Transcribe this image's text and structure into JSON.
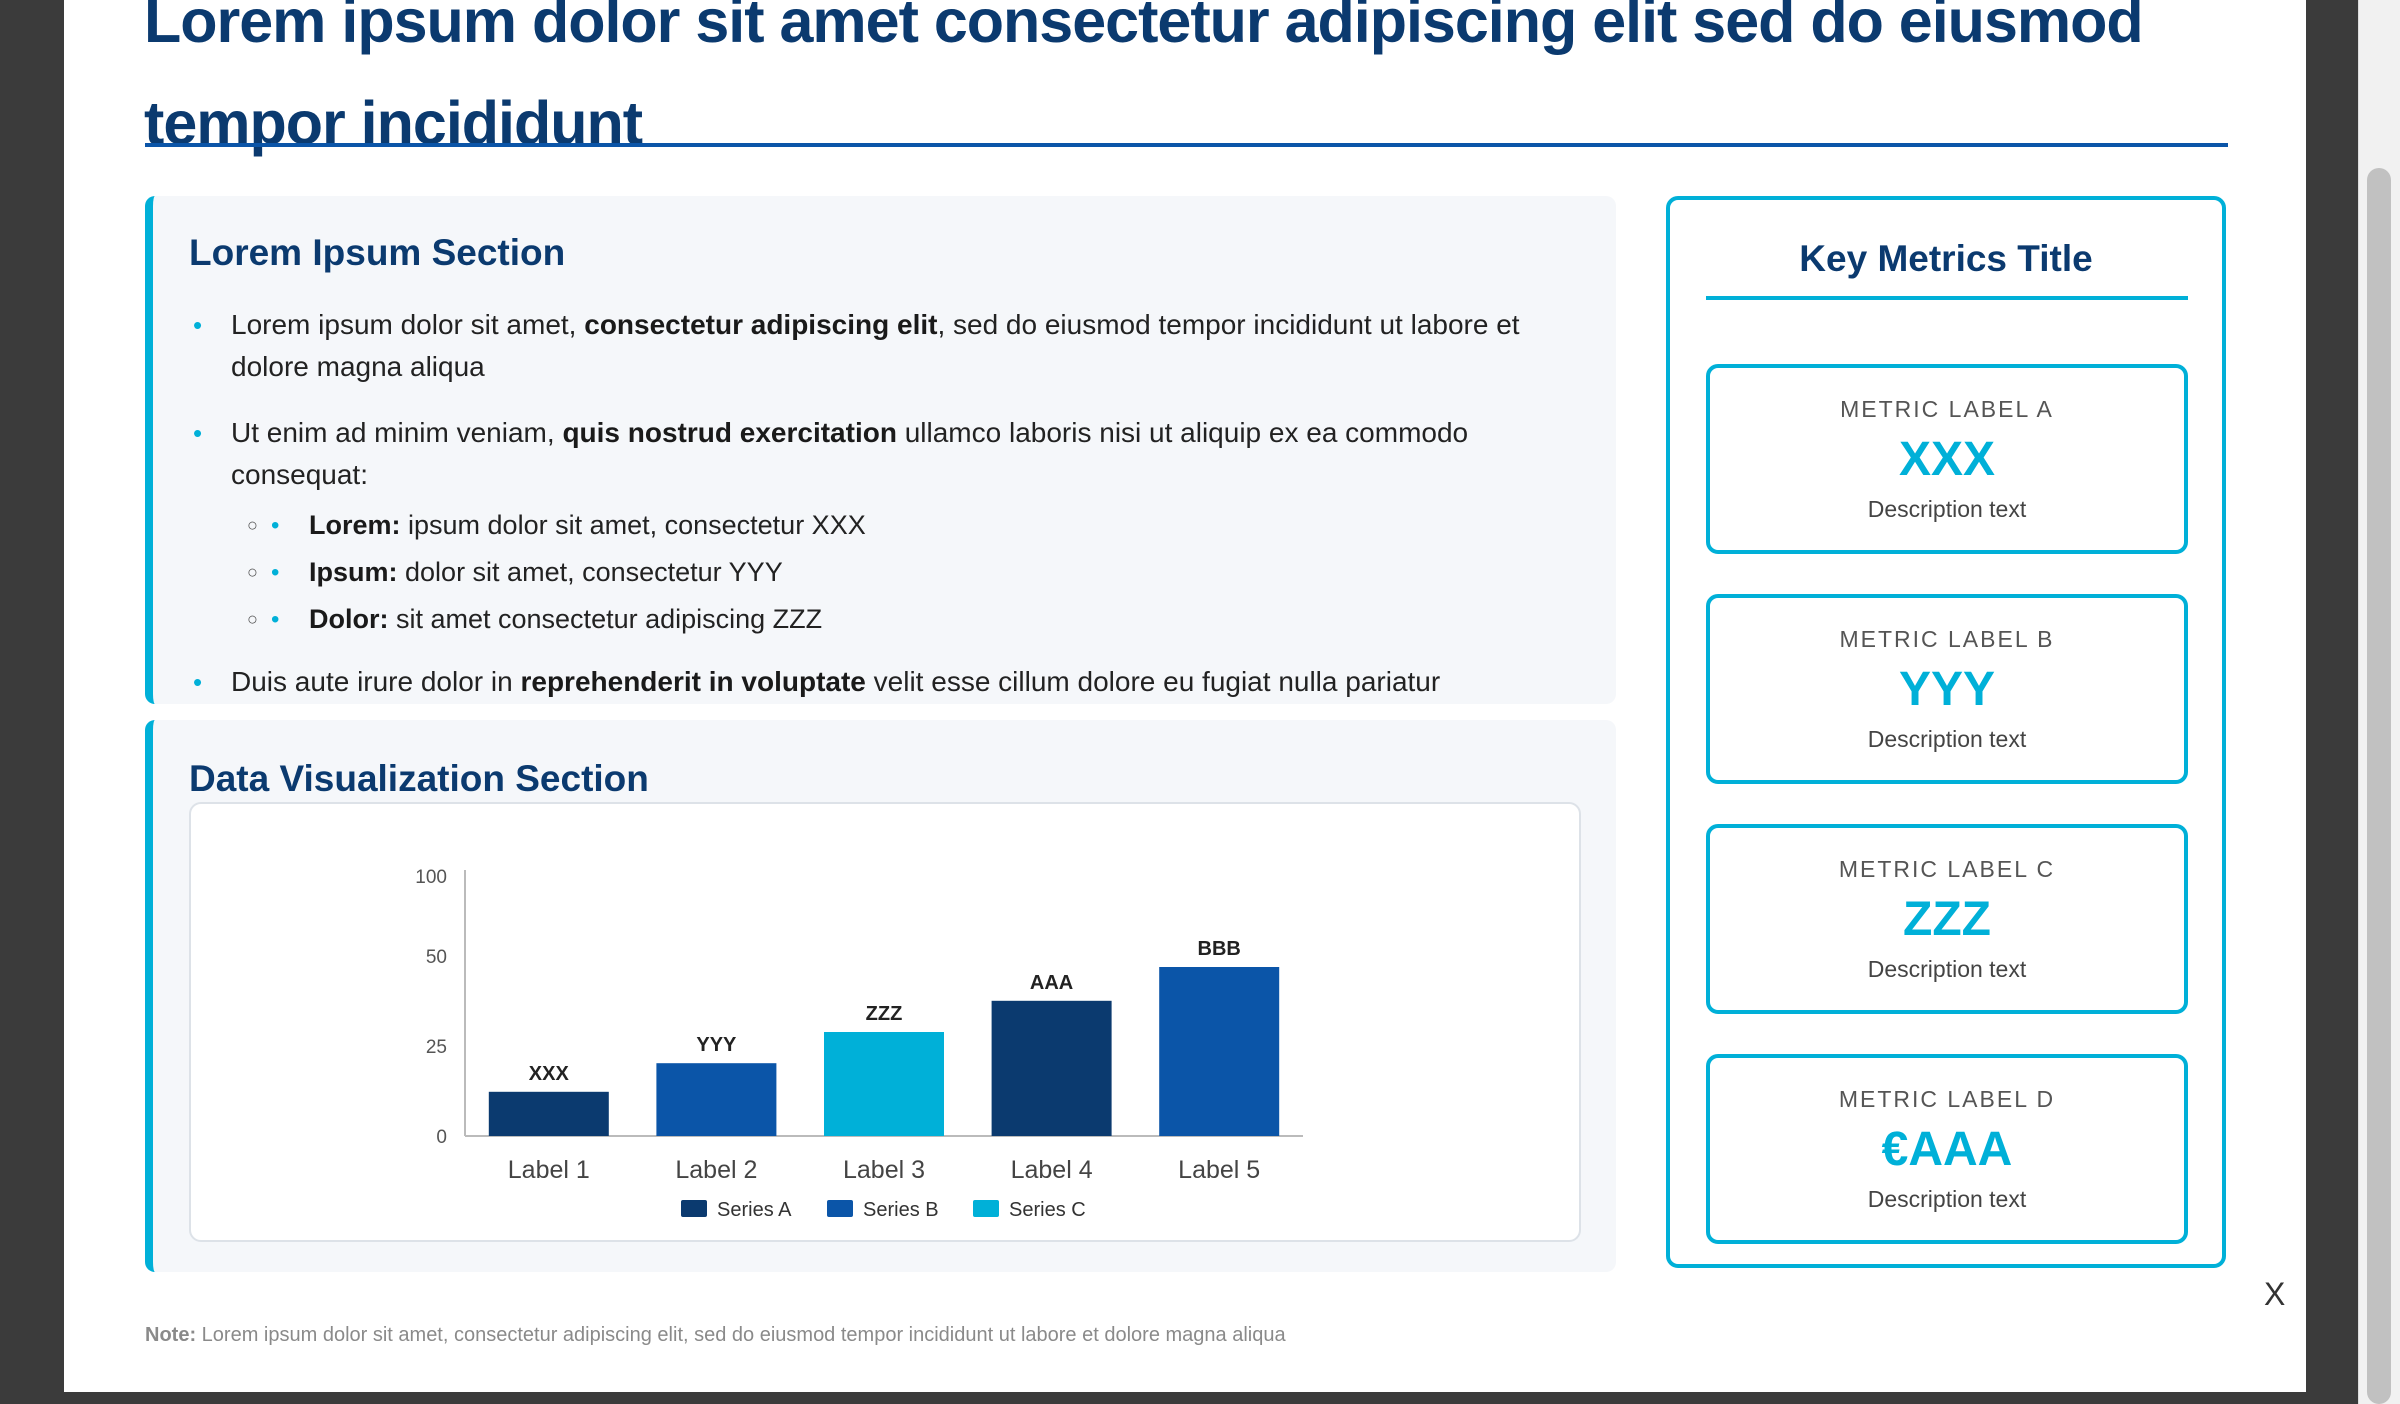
{
  "header": {
    "title": "Lorem ipsum dolor sit amet consectetur adipiscing elit sed do eiusmod tempor incididunt"
  },
  "section_text": {
    "title": "Lorem Ipsum Section",
    "bullets": [
      {
        "pre": "Lorem ipsum dolor sit amet, ",
        "bold": "consectetur adipiscing elit",
        "post": ", sed do eiusmod tempor incididunt ut labore et dolore magna aliqua"
      },
      {
        "pre": "Ut enim ad minim veniam, ",
        "bold": "quis nostrud exercitation",
        "post": " ullamco laboris nisi ut aliquip ex ea commodo consequat:"
      },
      {
        "pre": "Duis aute irure dolor in ",
        "bold": "reprehenderit in voluptate",
        "post": " velit esse cillum dolore eu fugiat nulla pariatur"
      }
    ],
    "subbullets": [
      {
        "bold": "Lorem:",
        "text": " ipsum dolor sit amet, consectetur XXX"
      },
      {
        "bold": "Ipsum:",
        "text": " dolor sit amet, consectetur YYY"
      },
      {
        "bold": "Dolor:",
        "text": " sit amet consectetur adipiscing ZZZ"
      }
    ]
  },
  "section_chart": {
    "title": "Data Visualization Section"
  },
  "chart_data": {
    "type": "bar",
    "categories": [
      "Label 1",
      "Label 2",
      "Label 3",
      "Label 4",
      "Label 5"
    ],
    "values": [
      17,
      28,
      40,
      52,
      65
    ],
    "data_labels": [
      "XXX",
      "YYY",
      "ZZZ",
      "AAA",
      "BBB"
    ],
    "bar_series": [
      "Series A",
      "Series B",
      "Series C",
      "Series A",
      "Series B"
    ],
    "y_ticks": [
      "100",
      "50",
      "25",
      "0"
    ],
    "ylim": [
      0,
      100
    ],
    "legend": [
      "Series A",
      "Series B",
      "Series C"
    ],
    "legend_position": "bottom",
    "grid": false,
    "colors": {
      "Series A": "#0b3a6f",
      "Series B": "#0b55a8",
      "Series C": "#00b0d8"
    }
  },
  "metrics": {
    "title": "Key Metrics Title",
    "cards": [
      {
        "label": "METRIC LABEL A",
        "value": "XXX",
        "desc": "Description text"
      },
      {
        "label": "METRIC LABEL B",
        "value": "YYY",
        "desc": "Description text"
      },
      {
        "label": "METRIC LABEL C",
        "value": "ZZZ",
        "desc": "Description text"
      },
      {
        "label": "METRIC LABEL D",
        "value": "€AAA",
        "desc": "Description text"
      }
    ]
  },
  "close_label": "X",
  "footnote": {
    "label": "Note:",
    "text": " Lorem ipsum dolor sit amet, consectetur adipiscing elit, sed do eiusmod tempor incididunt ut labore et dolore magna aliqua"
  },
  "colors": {
    "navy": "#0b3a6f",
    "blue": "#0b55a8",
    "accent": "#00b0d8"
  }
}
